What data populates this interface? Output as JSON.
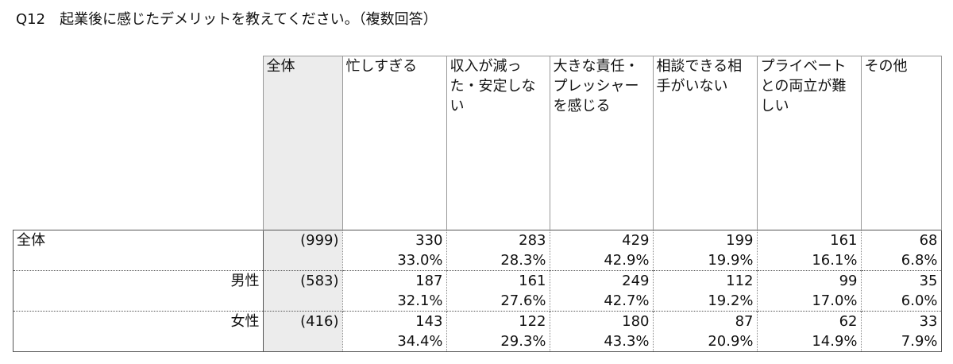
{
  "title": "Q12　起業後に感じたデメリットを教えてください。（複数回答）",
  "table": {
    "columns": [
      "全体",
      "忙しすぎる",
      "収入が減った・安定しない",
      "大きな責任・プレッシャーを感じる",
      "相談できる相手がいない",
      "プライベートとの両立が難しい",
      "その他"
    ],
    "rows": [
      {
        "label": "全体",
        "n": "(999)",
        "counts": [
          330,
          283,
          429,
          199,
          161,
          68
        ],
        "percents": [
          "33.0%",
          "28.3%",
          "42.9%",
          "19.9%",
          "16.1%",
          "6.8%"
        ]
      },
      {
        "label": "男性",
        "n": "(583)",
        "counts": [
          187,
          161,
          249,
          112,
          99,
          35
        ],
        "percents": [
          "32.1%",
          "27.6%",
          "42.7%",
          "19.2%",
          "17.0%",
          "6.0%"
        ]
      },
      {
        "label": "女性",
        "n": "(416)",
        "counts": [
          143,
          122,
          180,
          87,
          62,
          33
        ],
        "percents": [
          "34.4%",
          "29.3%",
          "43.3%",
          "20.9%",
          "14.9%",
          "7.9%"
        ]
      }
    ]
  }
}
